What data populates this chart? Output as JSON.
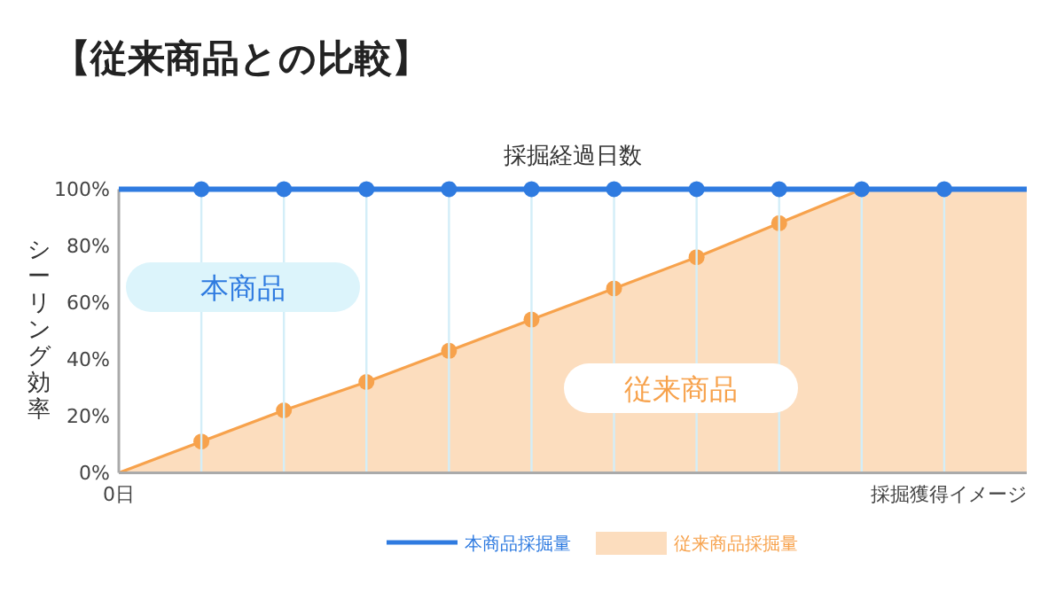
{
  "chart_data": {
    "type": "area",
    "title": "【従来商品との比較】",
    "xlabel": "採掘経過日数",
    "ylabel": "シーリング効率",
    "categories": [
      "0日",
      null,
      null,
      null,
      null,
      null,
      null,
      null,
      null,
      null,
      null,
      null
    ],
    "series": [
      {
        "name": "本商品採掘量",
        "type": "line",
        "color": "#2f7be0",
        "values": [
          100,
          100,
          100,
          100,
          100,
          100,
          100,
          100,
          100,
          100,
          100,
          100
        ]
      },
      {
        "name": "従来商品採掘量",
        "color": "#f7a24c",
        "values": [
          0,
          11,
          22,
          32,
          43,
          54,
          65,
          76,
          88,
          100,
          100,
          100
        ]
      }
    ],
    "ylim": [
      0,
      100
    ],
    "yticks": [
      {
        "value": 0,
        "label": "0%"
      },
      {
        "value": 20,
        "label": "20%"
      },
      {
        "value": 40,
        "label": "40%"
      },
      {
        "value": 60,
        "label": "60%"
      },
      {
        "value": 80,
        "label": "80%"
      },
      {
        "value": 100,
        "label": "100%"
      }
    ],
    "annotations": [
      "本商品",
      "従来商品",
      "採掘獲得イメージ"
    ],
    "grid": "x",
    "legend": "bottom",
    "marker": "circle"
  }
}
